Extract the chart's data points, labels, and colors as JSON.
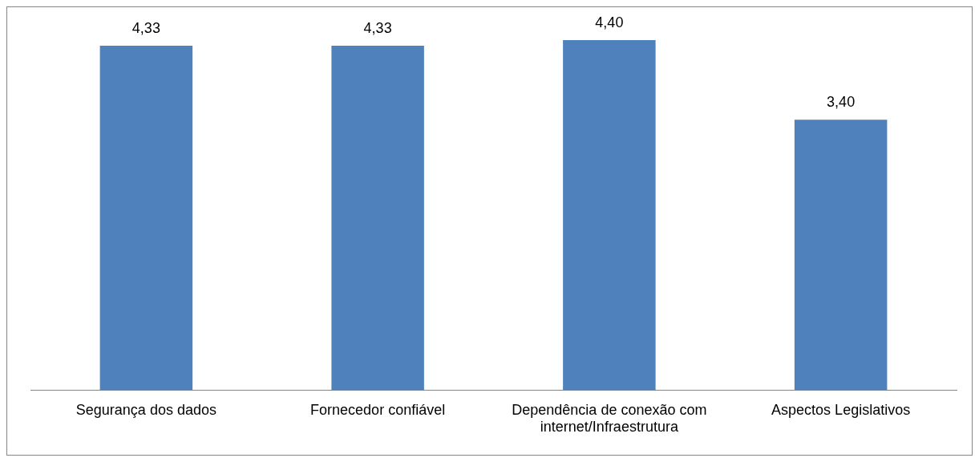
{
  "chart_data": {
    "type": "bar",
    "categories": [
      "Segurança dos dados",
      "Fornecedor confiável",
      "Dependência de conexão com internet/Infraestrutura",
      "Aspectos Legislativos"
    ],
    "values": [
      4.33,
      4.33,
      4.4,
      3.4
    ],
    "value_labels": [
      "4,33",
      "4,33",
      "4,40",
      "3,40"
    ],
    "color": "#4f81bd",
    "grid": false,
    "legend": false
  }
}
